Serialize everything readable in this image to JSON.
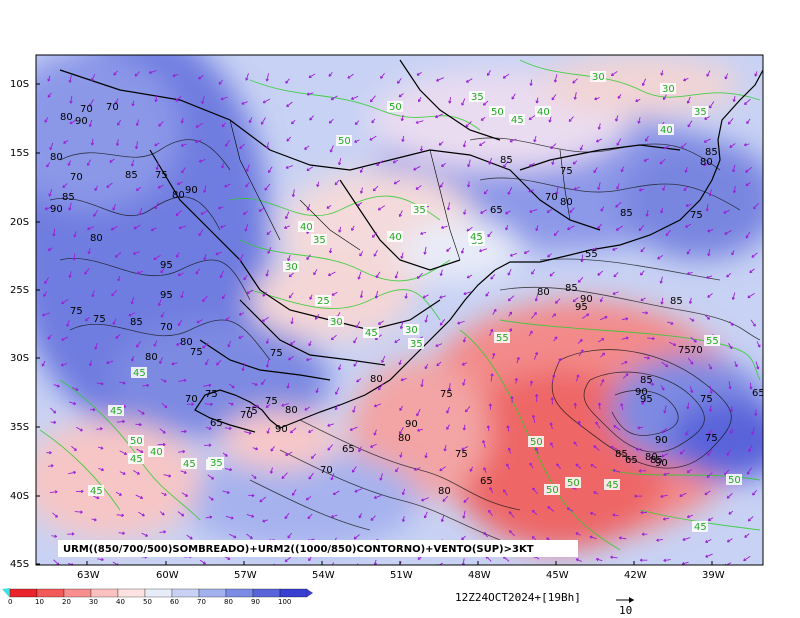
{
  "caption": "URM((850/700/500)SOMBREADO)+URM2((1000/850)CONTORNO)+VENTO(SUP)>3KT",
  "timestamp": "12Z24OCT2024+[19Bh]",
  "vector_ref": "10",
  "lat_labels": [
    "10S",
    "15S",
    "20S",
    "25S",
    "30S",
    "35S",
    "40S",
    "45S"
  ],
  "lon_labels": [
    "63W",
    "60W",
    "57W",
    "54W",
    "51W",
    "48W",
    "45W",
    "42W",
    "39W"
  ],
  "colorbar_labels": [
    "0",
    "10",
    "20",
    "30",
    "40",
    "50",
    "60",
    "70",
    "80",
    "90",
    "100"
  ],
  "colorbar_colors": [
    "#e8242a",
    "#f25a5a",
    "#f88e8e",
    "#fbc0c0",
    "#fde2e2",
    "#e8ecf8",
    "#c8d2f4",
    "#a2b0ee",
    "#7c8ce4",
    "#5a64da",
    "#3a3ed0"
  ],
  "contour_labels_black": [
    "70",
    "70",
    "80",
    "90",
    "80",
    "70",
    "85",
    "75",
    "80",
    "90",
    "85",
    "90",
    "80",
    "95",
    "95",
    "75",
    "75",
    "85",
    "70",
    "80",
    "80",
    "75",
    "75",
    "80",
    "75",
    "70",
    "65",
    "75",
    "70",
    "75",
    "80",
    "90",
    "75",
    "90",
    "80",
    "65",
    "75",
    "65",
    "70",
    "80",
    "85",
    "75",
    "70",
    "80",
    "85",
    "75",
    "65",
    "55",
    "80",
    "85",
    "90",
    "95",
    "85",
    "75",
    "70",
    "85",
    "90",
    "95",
    "75",
    "85",
    "65",
    "80",
    "85",
    "90",
    "75",
    "90",
    "65",
    "85",
    "80"
  ],
  "contour_labels_green": [
    "50",
    "35",
    "50",
    "40",
    "30",
    "30",
    "50",
    "35",
    "45",
    "40",
    "30",
    "35",
    "40",
    "35",
    "35",
    "45",
    "40",
    "25",
    "30",
    "45",
    "30",
    "35",
    "35",
    "50",
    "45",
    "45",
    "45",
    "40",
    "55",
    "55",
    "50",
    "50",
    "50",
    "45",
    "50",
    "45",
    "45",
    "45",
    "35"
  ]
}
